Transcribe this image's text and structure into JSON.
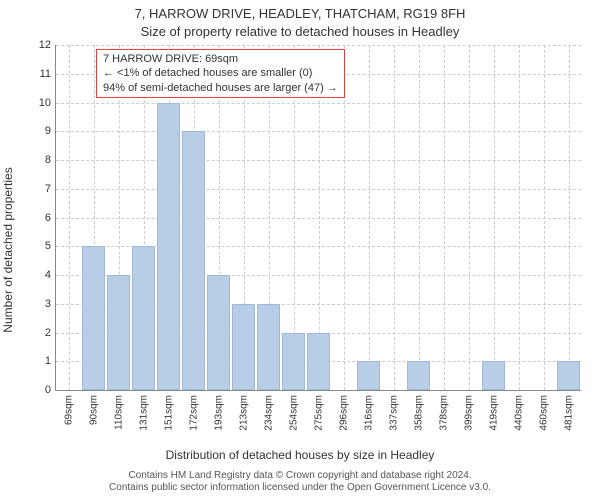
{
  "title_line1": "7, HARROW DRIVE, HEADLEY, THATCHAM, RG19 8FH",
  "title_line2": "Size of property relative to detached houses in Headley",
  "ylabel": "Number of detached properties",
  "xlabel": "Distribution of detached houses by size in Headley",
  "footer_line1": "Contains HM Land Registry data © Crown copyright and database right 2024.",
  "footer_line2": "Contains public sector information licensed under the Open Government Licence v3.0.",
  "annotation": {
    "line1": "7 HARROW DRIVE: 69sqm",
    "line2": "← <1% of detached houses are smaller (0)",
    "line3": "94% of semi-detached houses are larger (47) →"
  },
  "chart": {
    "type": "bar",
    "ylim": [
      0,
      12
    ],
    "ytick_step": 1,
    "bar_color": "#b8cde6",
    "bar_border_color": "#9fb9d6",
    "grid_color": "#cccccc",
    "axis_color": "#888888",
    "background_color": "#ffffff",
    "annotation_border_color": "#d44",
    "title_fontsize": 13,
    "label_fontsize": 12,
    "tick_fontsize": 11,
    "categories": [
      "69sqm",
      "90sqm",
      "110sqm",
      "131sqm",
      "151sqm",
      "172sqm",
      "193sqm",
      "213sqm",
      "234sqm",
      "254sqm",
      "275sqm",
      "296sqm",
      "316sqm",
      "337sqm",
      "358sqm",
      "378sqm",
      "399sqm",
      "419sqm",
      "440sqm",
      "460sqm",
      "481sqm"
    ],
    "values": [
      0,
      5,
      4,
      5,
      10,
      9,
      4,
      3,
      3,
      2,
      2,
      0,
      1,
      0,
      1,
      0,
      0,
      1,
      0,
      0,
      1
    ]
  }
}
